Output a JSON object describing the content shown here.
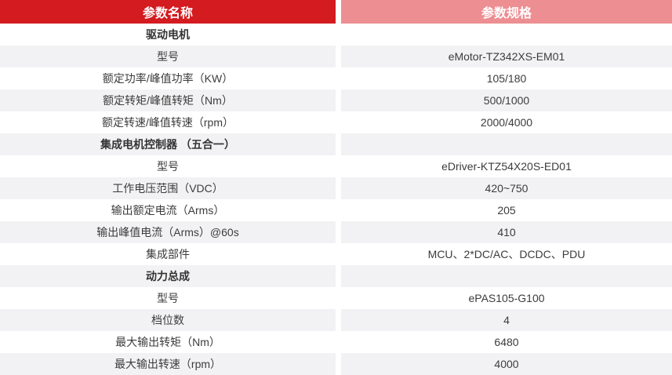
{
  "colors": {
    "header_left_bg": "#d31b20",
    "header_right_bg": "#ec8e92",
    "row_alt_bg": "#f2f2f4",
    "row_bg": "#ffffff",
    "header_text": "#ffffff",
    "body_text": "#3c3c3c"
  },
  "table": {
    "headers": [
      {
        "label": "参数名称"
      },
      {
        "label": "参数规格"
      }
    ],
    "rows": [
      {
        "label": "驱动电机",
        "value": "",
        "section": true
      },
      {
        "label": "型号",
        "value": "eMotor-TZ342XS-EM01",
        "section": false
      },
      {
        "label": "额定功率/峰值功率（KW）",
        "value": "105/180",
        "section": false
      },
      {
        "label": "额定转矩/峰值转矩（Nm）",
        "value": "500/1000",
        "section": false
      },
      {
        "label": "额定转速/峰值转速（rpm）",
        "value": "2000/4000",
        "section": false
      },
      {
        "label": "集成电机控制器 （五合一）",
        "value": "",
        "section": true
      },
      {
        "label": "型号",
        "value": "eDriver-KTZ54X20S-ED01",
        "section": false
      },
      {
        "label": "工作电压范围（VDC）",
        "value": "420~750",
        "section": false
      },
      {
        "label": "输出额定电流（Arms）",
        "value": "205",
        "section": false
      },
      {
        "label": "输出峰值电流（Arms）@60s",
        "value": "410",
        "section": false
      },
      {
        "label": "集成部件",
        "value": "MCU、2*DC/AC、DCDC、PDU",
        "section": false
      },
      {
        "label": "动力总成",
        "value": "",
        "section": true
      },
      {
        "label": "型号",
        "value": "ePAS105-G100",
        "section": false
      },
      {
        "label": "档位数",
        "value": "4",
        "section": false
      },
      {
        "label": "最大输出转矩（Nm）",
        "value": "6480",
        "section": false
      },
      {
        "label": "最大输出转速（rpm）",
        "value": "4000",
        "section": false
      }
    ]
  }
}
